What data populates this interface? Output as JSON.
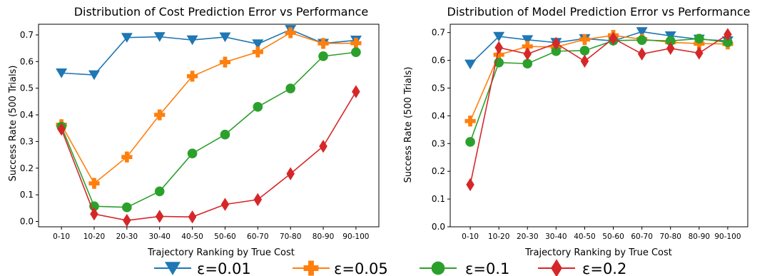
{
  "chart_data": [
    {
      "type": "line",
      "title": "Distribution of Cost Prediction Error vs Performance",
      "xlabel": "Trajectory Ranking by True Cost",
      "ylabel": "Success Rate (500 Trials)",
      "categories": [
        "0-10",
        "10-20",
        "20-30",
        "30-40",
        "40-50",
        "50-60",
        "60-70",
        "70-80",
        "80-90",
        "90-100"
      ],
      "ylim": [
        -0.02,
        0.74
      ],
      "yticks": [
        0.0,
        0.1,
        0.2,
        0.3,
        0.4,
        0.5,
        0.6,
        0.7
      ],
      "ytick_labels": [
        "0.0",
        "0.1",
        "0.2",
        "0.3",
        "0.4",
        "0.5",
        "0.6",
        "0.7"
      ],
      "grid": false,
      "series": [
        {
          "name": "ε=0.01",
          "color": "#1f77b4",
          "marker": "triangle-down",
          "values": [
            0.557,
            0.55,
            0.69,
            0.693,
            0.681,
            0.692,
            0.666,
            0.72,
            0.668,
            0.68
          ]
        },
        {
          "name": "ε=0.05",
          "color": "#ff7f0e",
          "marker": "plus",
          "values": [
            0.363,
            0.143,
            0.242,
            0.4,
            0.545,
            0.598,
            0.636,
            0.708,
            0.668,
            0.669
          ]
        },
        {
          "name": "ε=0.1",
          "color": "#2ca02c",
          "marker": "circle",
          "values": [
            0.356,
            0.057,
            0.053,
            0.113,
            0.255,
            0.326,
            0.43,
            0.499,
            0.62,
            0.635
          ]
        },
        {
          "name": "ε=0.2",
          "color": "#d62728",
          "marker": "diamond",
          "values": [
            0.346,
            0.028,
            0.004,
            0.019,
            0.017,
            0.064,
            0.082,
            0.179,
            0.282,
            0.487
          ]
        }
      ]
    },
    {
      "type": "line",
      "title": "Distribution of Model Prediction Error vs Performance",
      "xlabel": "Trajectory Ranking by True Cost",
      "ylabel": "Success Rate (500 Trials)",
      "categories": [
        "0-10",
        "10-20",
        "20-30",
        "30-40",
        "40-50",
        "50-60",
        "60-70",
        "70-80",
        "80-90",
        "90-100"
      ],
      "ylim": [
        0.0,
        0.73
      ],
      "yticks": [
        0.0,
        0.1,
        0.2,
        0.3,
        0.4,
        0.5,
        0.6,
        0.7
      ],
      "ytick_labels": [
        "0.0",
        "0.1",
        "0.2",
        "0.3",
        "0.4",
        "0.5",
        "0.6",
        "0.7"
      ],
      "grid": false,
      "series": [
        {
          "name": "ε=0.01",
          "color": "#1f77b4",
          "marker": "triangle-down",
          "values": [
            0.586,
            0.686,
            0.674,
            0.664,
            0.678,
            0.67,
            0.703,
            0.688,
            0.676,
            0.67
          ]
        },
        {
          "name": "ε=0.05",
          "color": "#ff7f0e",
          "marker": "plus",
          "values": [
            0.381,
            0.62,
            0.65,
            0.648,
            0.675,
            0.69,
            0.676,
            0.665,
            0.66,
            0.659
          ]
        },
        {
          "name": "ε=0.1",
          "color": "#2ca02c",
          "marker": "circle",
          "values": [
            0.306,
            0.592,
            0.588,
            0.633,
            0.635,
            0.671,
            0.673,
            0.67,
            0.678,
            0.665
          ]
        },
        {
          "name": "ε=0.2",
          "color": "#d62728",
          "marker": "diamond",
          "values": [
            0.152,
            0.646,
            0.623,
            0.661,
            0.597,
            0.679,
            0.623,
            0.643,
            0.626,
            0.693
          ]
        }
      ]
    }
  ],
  "legend": {
    "placement": "bottom-center",
    "items": [
      "ε=0.01",
      "ε=0.05",
      "ε=0.1",
      "ε=0.2"
    ]
  }
}
